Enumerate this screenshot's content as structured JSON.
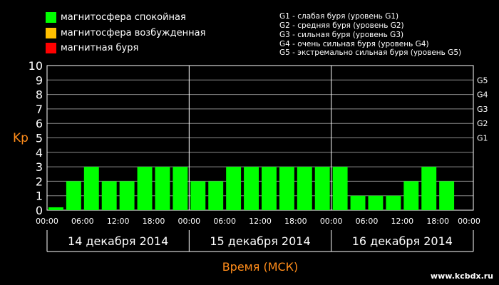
{
  "legend": [
    {
      "label": "магнитосфера спокойная",
      "color": "#00ff00"
    },
    {
      "label": "магнитосфера возбужденная",
      "color": "#ffc000"
    },
    {
      "label": "магнитная буря",
      "color": "#ff0000"
    }
  ],
  "g_levels": [
    "G1 - слабая буря (уровень G1)",
    "G2 - средняя буря (уровень G2)",
    "G3 - сильная буря (уровень G3)",
    "G4 - очень сильная буря (уровень G4)",
    "G5 - экстремально сильная буря (уровень G5)"
  ],
  "watermark": "www.kcbdx.ru",
  "chart_data": {
    "type": "bar",
    "ylabel": "Kp",
    "xlabel": "Время (МСК)",
    "ylim": [
      0,
      10
    ],
    "yticks": [
      0,
      1,
      2,
      3,
      4,
      5,
      6,
      7,
      8,
      9,
      10
    ],
    "right_ticks": [
      {
        "label": "G1",
        "value": 5
      },
      {
        "label": "G2",
        "value": 6
      },
      {
        "label": "G3",
        "value": 7
      },
      {
        "label": "G4",
        "value": 8
      },
      {
        "label": "G5",
        "value": 9
      }
    ],
    "grid": true,
    "days": [
      "14 декабря 2014",
      "15 декабря 2014",
      "16 декабря 2014"
    ],
    "time_ticks": [
      "00:00",
      "06:00",
      "12:00",
      "18:00"
    ],
    "end_tick": "00:00",
    "series": [
      {
        "values": [
          0.2,
          2,
          3,
          2,
          2,
          3,
          3,
          3,
          2,
          2,
          3,
          3,
          3,
          3,
          3,
          3,
          3,
          1,
          1,
          1,
          2,
          3,
          2,
          null
        ]
      }
    ],
    "bar_color": "#00ff00"
  }
}
